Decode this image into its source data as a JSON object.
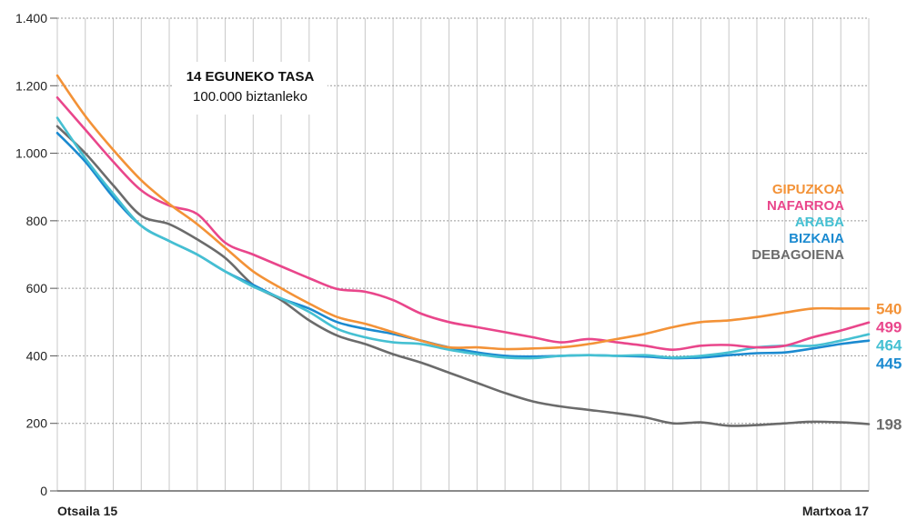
{
  "chart_data": {
    "type": "line",
    "title": "14 EGUNEKO TASA",
    "subtitle": "100.000 biztanleko",
    "xlabel": "",
    "ylabel": "",
    "x_start_label": "Otsaila 15",
    "x_end_label": "Martxoa 17",
    "x_num_points": 30,
    "ylim": [
      0,
      1400
    ],
    "y_ticks": [
      0,
      200,
      400,
      600,
      800,
      1000,
      1200,
      1400
    ],
    "y_tick_labels": [
      "0",
      "200",
      "400",
      "600",
      "800",
      "1.000",
      "1.200",
      "1.400"
    ],
    "grid": true,
    "legend_position": "right",
    "series": [
      {
        "name": "GIPUZKOA",
        "color": "#f39237",
        "end_label": "540",
        "values": [
          1230,
          1110,
          1010,
          920,
          850,
          790,
          720,
          650,
          600,
          555,
          515,
          495,
          470,
          445,
          425,
          425,
          420,
          422,
          425,
          435,
          450,
          465,
          485,
          500,
          505,
          515,
          528,
          540,
          540,
          540
        ]
      },
      {
        "name": "NAFARROA",
        "color": "#e9468b",
        "end_label": "499",
        "values": [
          1165,
          1070,
          975,
          890,
          845,
          820,
          735,
          700,
          665,
          630,
          598,
          590,
          565,
          525,
          500,
          485,
          470,
          455,
          440,
          450,
          440,
          430,
          418,
          430,
          432,
          425,
          430,
          455,
          475,
          499
        ]
      },
      {
        "name": "ARABA",
        "color": "#45c0d2",
        "end_label": "464",
        "values": [
          1105,
          985,
          880,
          785,
          740,
          700,
          650,
          605,
          570,
          530,
          480,
          455,
          440,
          435,
          418,
          405,
          395,
          393,
          400,
          402,
          400,
          402,
          395,
          400,
          410,
          425,
          430,
          430,
          445,
          464
        ]
      },
      {
        "name": "BIZKAIA",
        "color": "#1b8ad0",
        "end_label": "445",
        "values": [
          1060,
          975,
          870,
          785,
          740,
          700,
          650,
          610,
          570,
          540,
          500,
          480,
          465,
          445,
          425,
          410,
          400,
          398,
          400,
          402,
          400,
          398,
          393,
          395,
          402,
          408,
          410,
          422,
          435,
          445
        ]
      },
      {
        "name": "DEBAGOIENA",
        "color": "#6b6b6b",
        "end_label": "198",
        "values": [
          1080,
          1000,
          905,
          815,
          790,
          745,
          690,
          610,
          565,
          505,
          460,
          435,
          405,
          380,
          350,
          320,
          290,
          265,
          250,
          240,
          230,
          218,
          200,
          203,
          193,
          195,
          200,
          205,
          203,
          198
        ]
      }
    ]
  }
}
